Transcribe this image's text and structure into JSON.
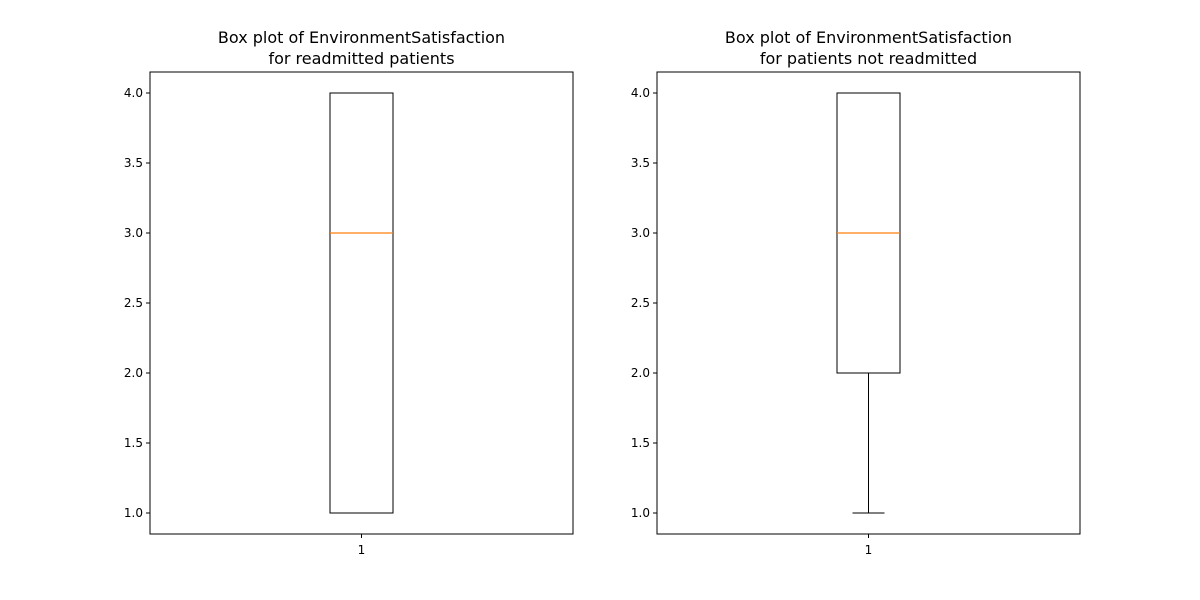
{
  "chart_data": [
    {
      "type": "box",
      "title": "Box plot of EnvironmentSatisfaction\nfor readmitted patients",
      "xlabel": "",
      "ylabel": "",
      "x_tick_labels": [
        "1"
      ],
      "y_ticks": [
        1.0,
        1.5,
        2.0,
        2.5,
        3.0,
        3.5,
        4.0
      ],
      "y_tick_labels": [
        "1.0",
        "1.5",
        "2.0",
        "2.5",
        "3.0",
        "3.5",
        "4.0"
      ],
      "ylim": [
        0.85,
        4.15
      ],
      "grid": false,
      "boxes": [
        {
          "category": "1",
          "whisker_low": 1.0,
          "q1": 1.0,
          "median": 3.0,
          "q3": 4.0,
          "whisker_high": 4.0
        }
      ]
    },
    {
      "type": "box",
      "title": "Box plot of EnvironmentSatisfaction\nfor patients not readmitted",
      "xlabel": "",
      "ylabel": "",
      "x_tick_labels": [
        "1"
      ],
      "y_ticks": [
        1.0,
        1.5,
        2.0,
        2.5,
        3.0,
        3.5,
        4.0
      ],
      "y_tick_labels": [
        "1.0",
        "1.5",
        "2.0",
        "2.5",
        "3.0",
        "3.5",
        "4.0"
      ],
      "ylim": [
        0.85,
        4.15
      ],
      "grid": false,
      "boxes": [
        {
          "category": "1",
          "whisker_low": 1.0,
          "q1": 2.0,
          "median": 3.0,
          "q3": 4.0,
          "whisker_high": 4.0
        }
      ]
    }
  ],
  "colors": {
    "median": "#ff7f0e",
    "box": "#000000",
    "axes": "#000000",
    "background": "#ffffff"
  }
}
